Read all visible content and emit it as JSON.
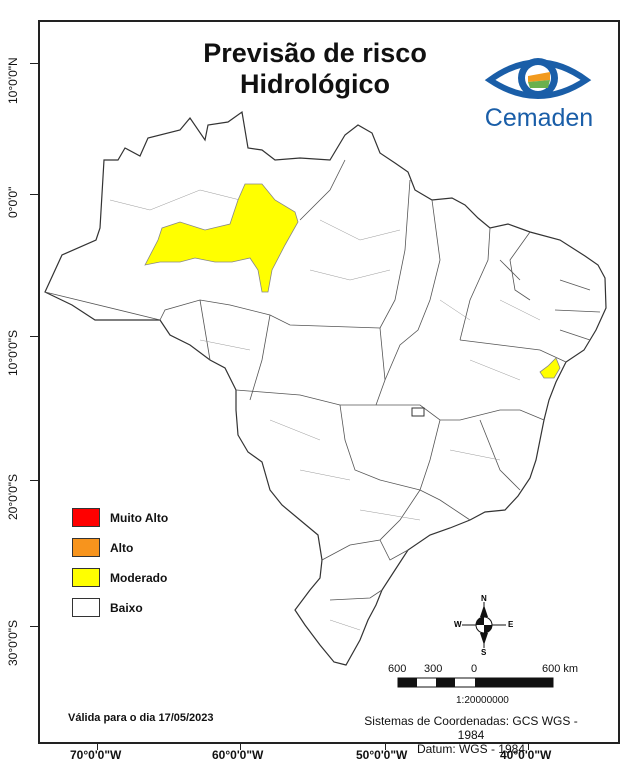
{
  "title": {
    "line1": "Previsão de risco",
    "line2": "Hidrológico"
  },
  "logo": {
    "text": "Cemaden",
    "colors": {
      "blue": "#1a5ea8",
      "orange": "#f29a1e",
      "green": "#6ab04c"
    }
  },
  "latitude_labels": [
    "10°0'0\"N",
    "0°0'0\"",
    "10°0'0\"S",
    "20°0'0\"S",
    "30°0'0\"S"
  ],
  "longitude_labels": [
    "70°0'0\"W",
    "60°0'0\"W",
    "50°0'0\"W",
    "40°0'0\"W"
  ],
  "legend": [
    {
      "label": "Muito Alto",
      "color": "#ff0000"
    },
    {
      "label": "Alto",
      "color": "#f7941d"
    },
    {
      "label": "Moderado",
      "color": "#ffff00"
    },
    {
      "label": "Baixo",
      "color": "#ffffff"
    }
  ],
  "validity": "Válida para o dia 17/05/2023",
  "coordinate_system": {
    "line1": "Sistemas de Coordenadas: GCS WGS - 1984",
    "line2": "Datum: WGS - 1984"
  },
  "scale_bar": {
    "labels": [
      "600",
      "300",
      "0",
      "600 km"
    ],
    "ratio": "1:20000000"
  },
  "north_arrow": {
    "n": "N",
    "s": "S",
    "e": "E",
    "w": "W"
  },
  "risk_regions": [
    {
      "name": "Amazonas / Pará region",
      "level": "Moderado"
    },
    {
      "name": "Bahia / Sergipe coast",
      "level": "Moderado"
    }
  ]
}
